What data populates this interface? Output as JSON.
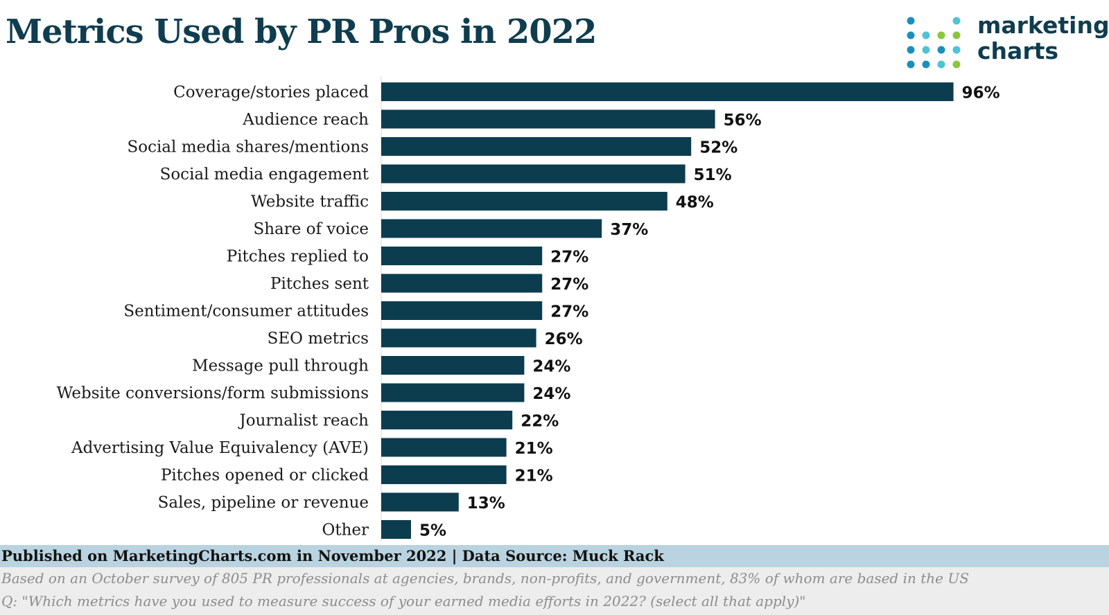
{
  "title": "Metrics Used by PR Pros in 2022",
  "logo": {
    "line1": "marketing",
    "line2": "charts",
    "colors": [
      "#1a8fbf",
      "#4fc3d4",
      "#8cc63f"
    ]
  },
  "chart_data": {
    "type": "bar",
    "orientation": "horizontal",
    "categories": [
      "Coverage/stories placed",
      "Audience reach",
      "Social media shares/mentions",
      "Social media engagement",
      "Website traffic",
      "Share of voice",
      "Pitches replied to",
      "Pitches sent",
      "Sentiment/consumer attitudes",
      "SEO metrics",
      "Message pull through",
      "Website conversions/form submissions",
      "Journalist reach",
      "Advertising Value Equivalency (AVE)",
      "Pitches opened or clicked",
      "Sales, pipeline or revenue",
      "Other"
    ],
    "values": [
      96,
      56,
      52,
      51,
      48,
      37,
      27,
      27,
      27,
      26,
      24,
      24,
      22,
      21,
      21,
      13,
      5
    ],
    "value_labels": [
      "96%",
      "56%",
      "52%",
      "51%",
      "48%",
      "37%",
      "27%",
      "27%",
      "27%",
      "26%",
      "24%",
      "24%",
      "22%",
      "21%",
      "21%",
      "13%",
      "5%"
    ],
    "xlim": [
      0,
      100
    ],
    "bar_color": "#0b3d4f",
    "grid": false,
    "legend": "none"
  },
  "footer": {
    "source": "Published on MarketingCharts.com in November 2022 | Data Source: Muck Rack",
    "note1": "Based on an October survey of 805 PR professionals at agencies, brands, non-profits, and government, 83% of whom are based in the US",
    "note2": "Q: \"Which metrics have you used to measure success of your earned media efforts in 2022? (select all that apply)\""
  }
}
